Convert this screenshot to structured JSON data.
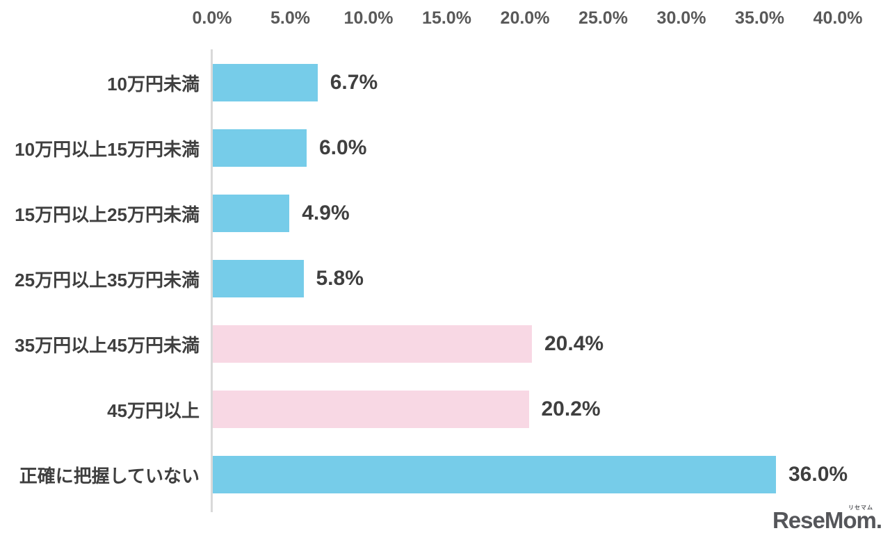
{
  "chart_data": {
    "type": "bar",
    "orientation": "horizontal",
    "title": "",
    "categories": [
      "10万円未満",
      "10万円以上15万円未満",
      "15万円以上25万円未満",
      "25万円以上35万円未満",
      "35万円以上45万円未満",
      "45万円以上",
      "正確に把握していない"
    ],
    "values": [
      6.7,
      6.0,
      4.9,
      5.8,
      20.4,
      20.2,
      36.0
    ],
    "value_labels": [
      "6.7%",
      "6.0%",
      "4.9%",
      "5.8%",
      "20.4%",
      "20.2%",
      "36.0%"
    ],
    "bar_colors": [
      "#76cce9",
      "#76cce9",
      "#76cce9",
      "#76cce9",
      "#f8d8e4",
      "#f8d8e4",
      "#76cce9"
    ],
    "x_axis": {
      "position": "top",
      "min": 0,
      "max": 40,
      "tick_step": 5,
      "tick_labels": [
        "0.0%",
        "5.0%",
        "10.0%",
        "15.0%",
        "20.0%",
        "25.0%",
        "30.0%",
        "35.0%",
        "40.0%"
      ]
    },
    "grid": false,
    "legend": false
  },
  "watermark": {
    "brand": "ReseMom.",
    "ruby": "リセマム"
  },
  "colors": {
    "bar_blue": "#76cce9",
    "bar_pink": "#f8d8e4",
    "label_text": "#3f3f3f",
    "tick_text": "#595959",
    "axis_line": "#d9d9d9",
    "logo_gray": "#55565a",
    "background": "#ffffff"
  }
}
